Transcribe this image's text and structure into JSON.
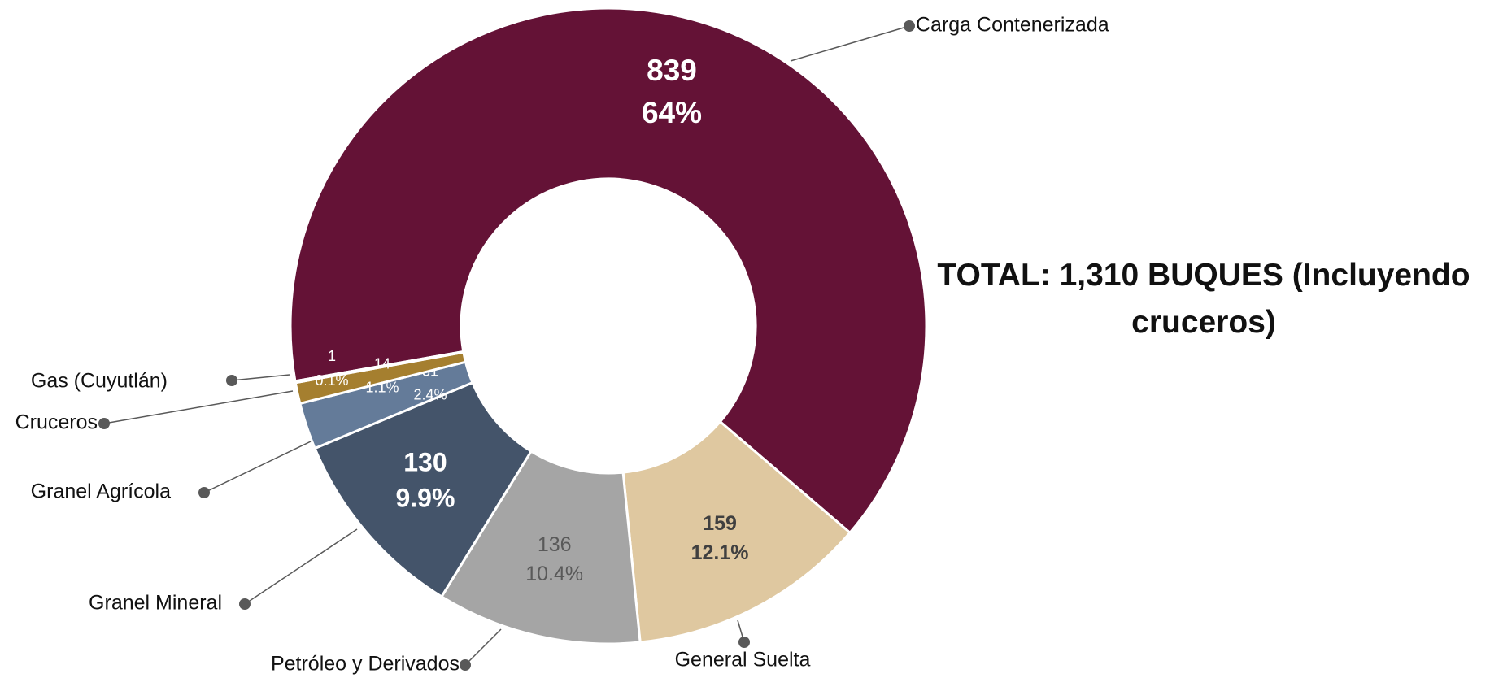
{
  "chart_data": {
    "type": "donut",
    "title": "TOTAL: 1,310 BUQUES (Incluyendo cruceros)",
    "categories": [
      "Carga Contenerizada",
      "General Suelta",
      "Petróleo y Derivados",
      "Granel Mineral",
      "Granel Agrícola",
      "Cruceros",
      "Gas (Cuyutlán)"
    ],
    "values": [
      839,
      159,
      136,
      130,
      31,
      14,
      1
    ],
    "percent_labels": [
      "64%",
      "12.1%",
      "10.4%",
      "9.9%",
      "2.4%",
      "1.1%",
      "0.1%"
    ],
    "colors": [
      "#641236",
      "#dfc8a0",
      "#a5a5a5",
      "#44546a",
      "#647b99",
      "#a57f2f",
      "#d9d9d9"
    ]
  }
}
